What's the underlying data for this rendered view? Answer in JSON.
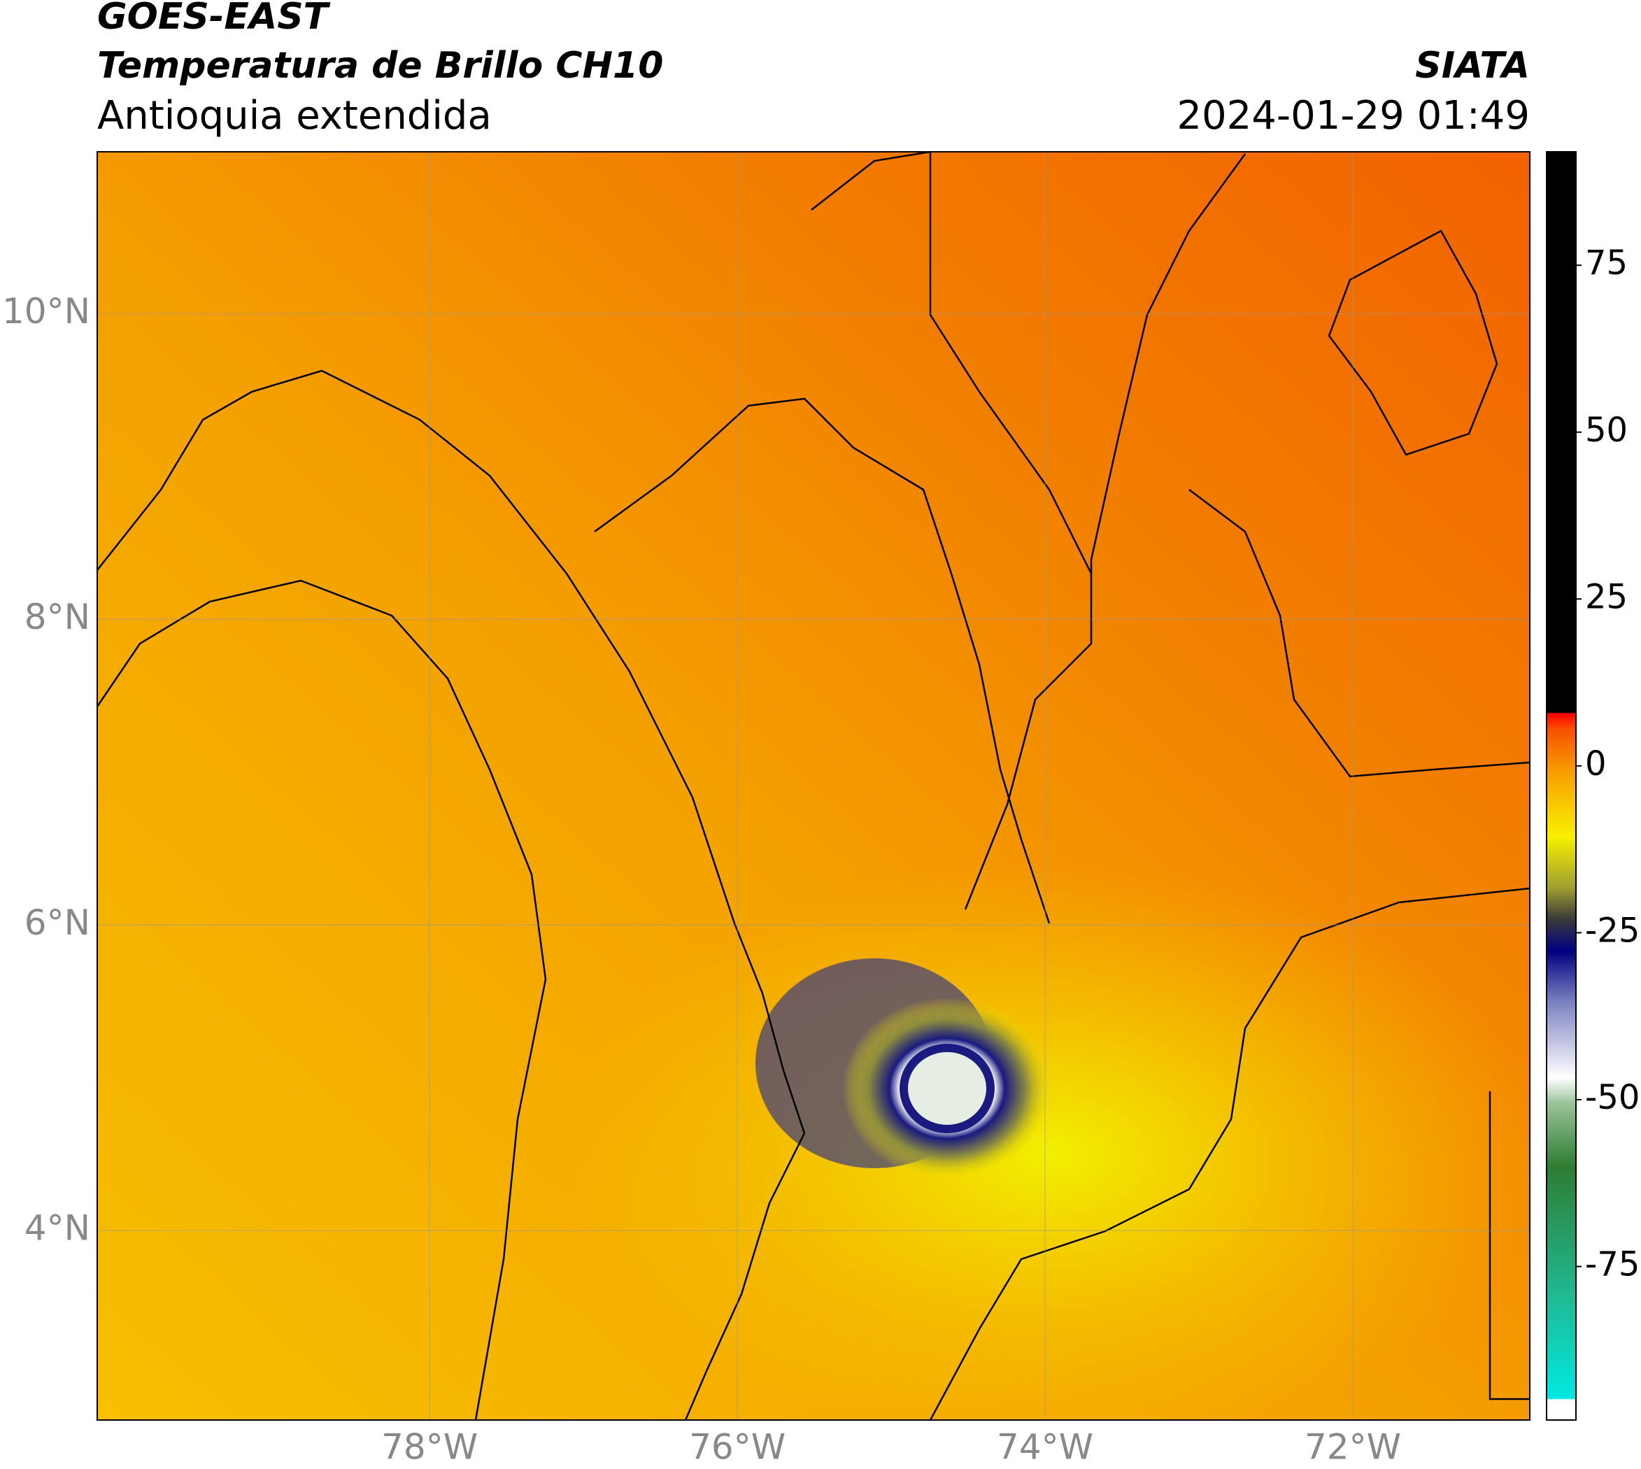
{
  "header": {
    "title": "GOES-EAST",
    "subtitle": "Temperatura de Brillo CH10",
    "region": "Antioquia extendida",
    "source": "SIATA",
    "datetime": "2024-01-29 01:49"
  },
  "map": {
    "lonlim": [
      -80.16,
      -70.85
    ],
    "latlim": [
      2.76,
      11.06
    ],
    "lonticks": [
      {
        "value": -78,
        "label": "78°W"
      },
      {
        "value": -76,
        "label": "76°W"
      },
      {
        "value": -74,
        "label": "74°W"
      },
      {
        "value": -72,
        "label": "72°W"
      }
    ],
    "latticks": [
      {
        "value": 10,
        "label": "10°N"
      },
      {
        "value": 8,
        "label": "8°N"
      },
      {
        "value": 6,
        "label": "6°N"
      },
      {
        "value": 4,
        "label": "4°N"
      }
    ],
    "grid": true
  },
  "colorbar": {
    "lim": [
      -98,
      92
    ],
    "ticks": [
      75,
      50,
      25,
      0,
      -25,
      -50,
      -75
    ]
  }
}
